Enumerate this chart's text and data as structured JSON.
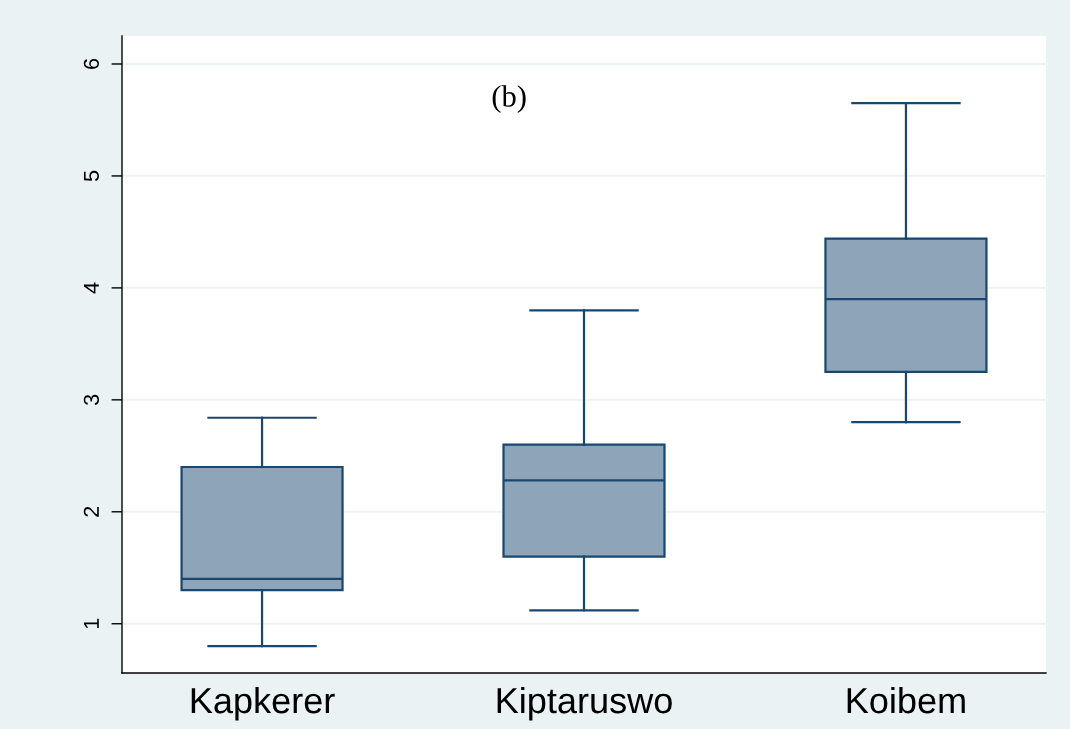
{
  "chart_data": {
    "type": "box",
    "categories": [
      "Kapkerer",
      "Kiptaruswo",
      "Koibem"
    ],
    "boxes": [
      {
        "low": 0.8,
        "q1": 1.3,
        "median": 1.4,
        "q3": 2.4,
        "high": 2.84
      },
      {
        "low": 1.12,
        "q1": 1.6,
        "median": 2.28,
        "q3": 2.6,
        "high": 3.8
      },
      {
        "low": 2.8,
        "q1": 3.25,
        "median": 3.9,
        "q3": 4.44,
        "high": 5.65
      }
    ],
    "color": "#8ea4b8",
    "ylim": [
      0.56,
      6.25
    ],
    "yticks": [
      1,
      2,
      3,
      4,
      5,
      6
    ],
    "grid": "y",
    "annotations": [
      "(b)"
    ]
  }
}
